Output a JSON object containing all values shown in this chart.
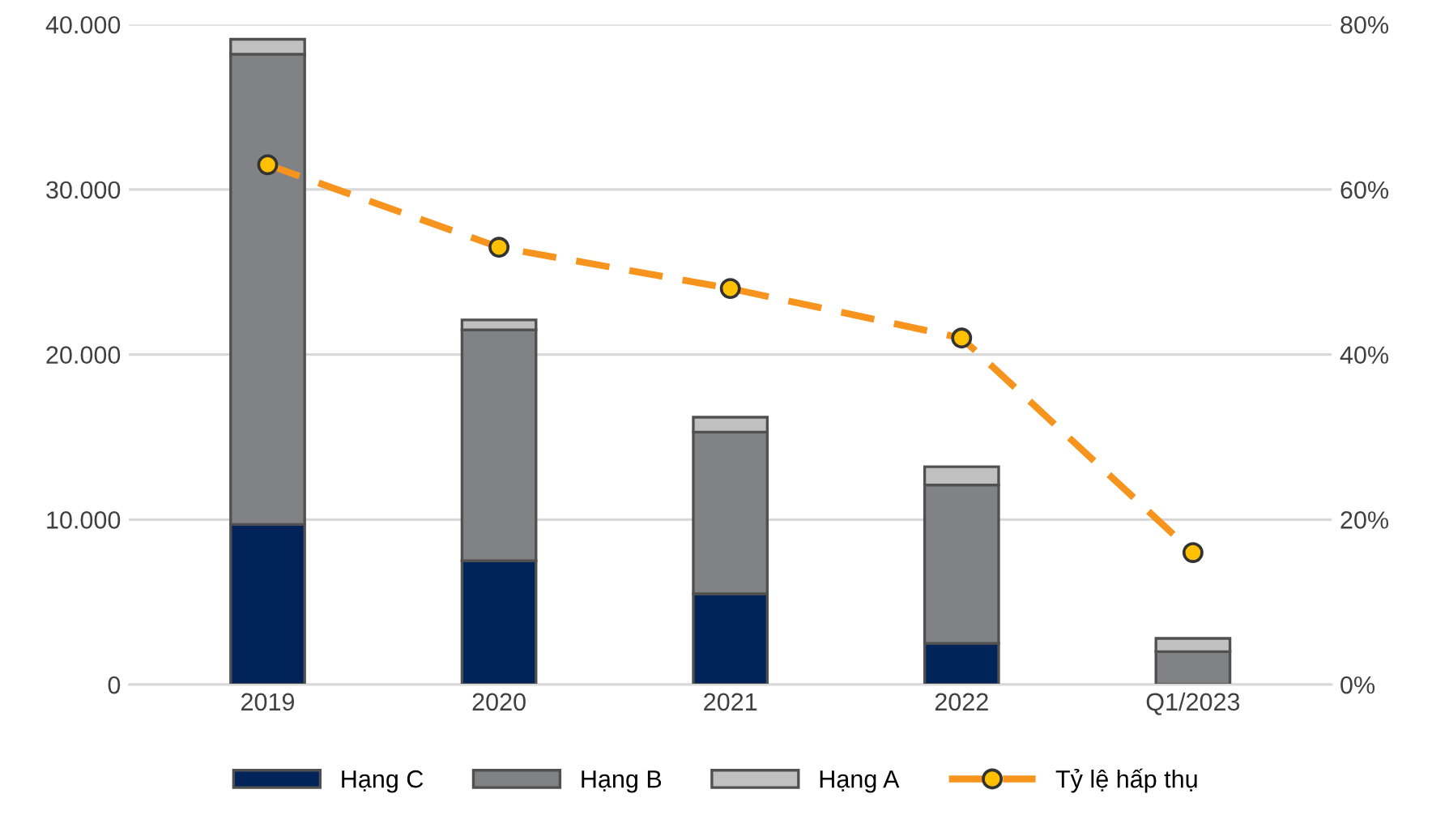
{
  "chart_data": {
    "type": "bar",
    "stacked": true,
    "categories": [
      "2019",
      "2020",
      "2021",
      "2022",
      "Q1/2023"
    ],
    "series": [
      {
        "name": "Hạng C",
        "color": "#002459",
        "values": [
          9700,
          7500,
          5500,
          2500,
          0
        ]
      },
      {
        "name": "Hạng B",
        "color": "#808285",
        "values": [
          28500,
          14000,
          9800,
          9600,
          2000
        ]
      },
      {
        "name": "Hạng A",
        "color": "#c0c0c0",
        "values": [
          900,
          600,
          900,
          1100,
          800
        ]
      },
      {
        "name": "Tỷ lệ hấp thụ",
        "type": "line",
        "axis": "y2",
        "color": "#f7941d",
        "marker": "circle",
        "line_style": "dashed",
        "values": [
          63,
          53,
          48,
          42,
          16
        ]
      }
    ],
    "ylim": [
      0,
      40000
    ],
    "yticks": [
      {
        "value": 0,
        "label": "0"
      },
      {
        "value": 10000,
        "label": "10.000"
      },
      {
        "value": 20000,
        "label": "20.000"
      },
      {
        "value": 30000,
        "label": "30.000"
      },
      {
        "value": 40000,
        "label": "40.000"
      }
    ],
    "y2lim": [
      0,
      80
    ],
    "y2ticks": [
      {
        "value": 0,
        "label": "0%"
      },
      {
        "value": 20,
        "label": "20%"
      },
      {
        "value": 40,
        "label": "40%"
      },
      {
        "value": 60,
        "label": "60%"
      },
      {
        "value": 80,
        "label": "80%"
      }
    ],
    "grid": "y",
    "legend": "bottom"
  }
}
